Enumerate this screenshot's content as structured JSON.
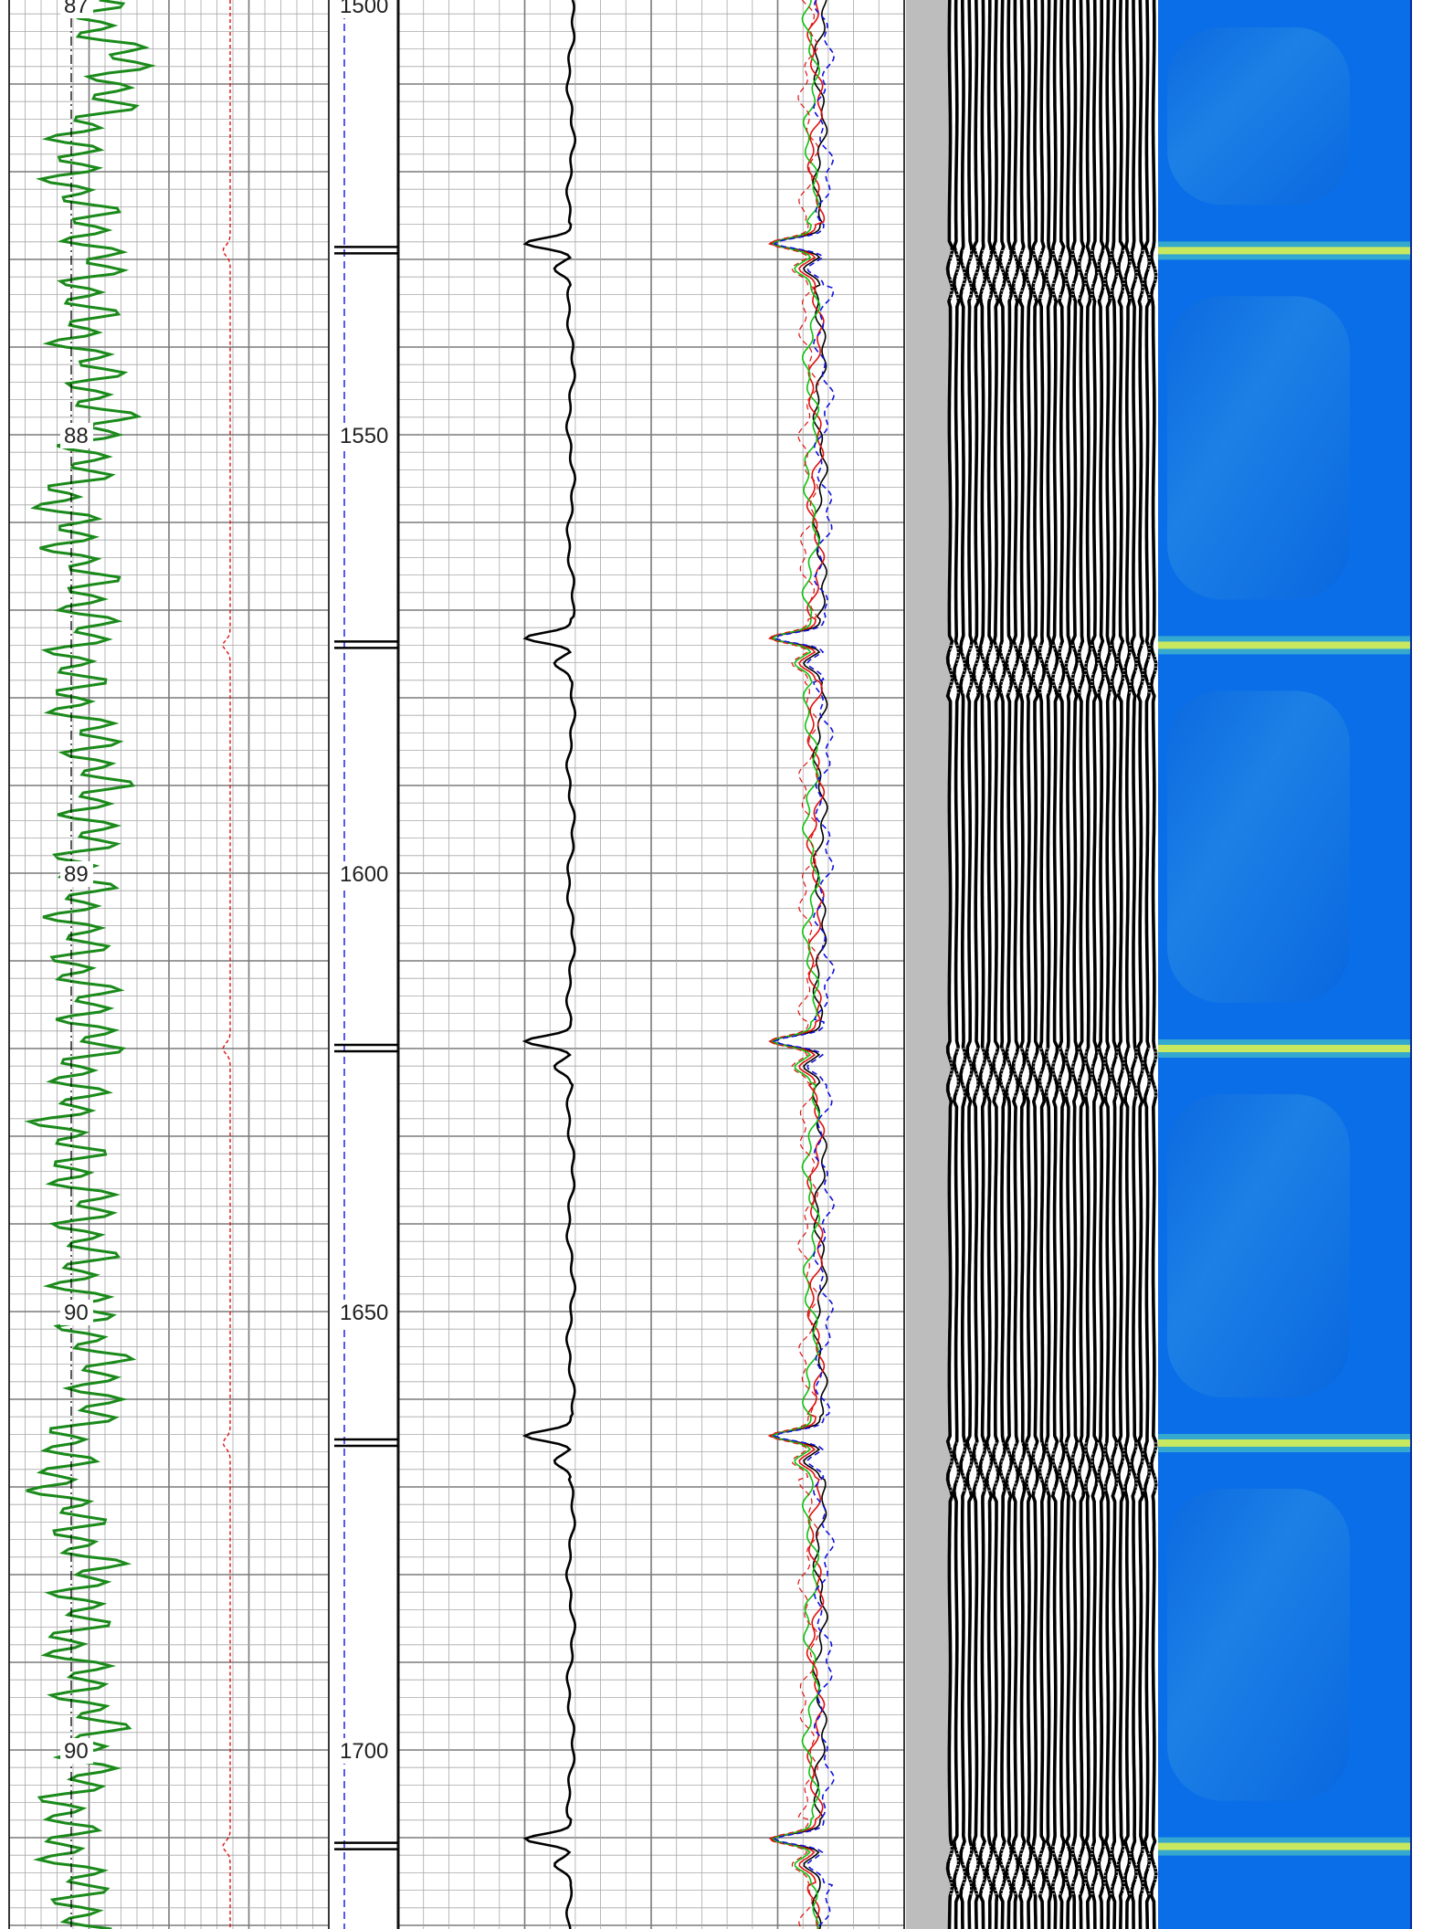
{
  "colors": {
    "grid_major": "#7a7a7a",
    "grid_minor": "#a8a8a8",
    "track_border": "#111111",
    "green_curve": "#1a8a1a",
    "red_curve": "#e01010",
    "blue_curve": "#1010e0",
    "black_curve": "#000000",
    "gray_strip": "#bdbdbd",
    "vdl_ink": "#000000",
    "spectrum_bg": "#0a6ee8",
    "spectrum_band": "#c8e860"
  },
  "chart_data": {
    "type": "line",
    "title": "",
    "depth_axis": {
      "ticks": [
        1550,
        1600,
        1650,
        1700
      ],
      "top_partial_label": "1500",
      "range": [
        1502,
        1720
      ],
      "label": ""
    },
    "left_track_scale": {
      "labels": [
        "88",
        "89",
        "90",
        "90"
      ],
      "top_partial_label": "87"
    },
    "collar_depths": [
      1529,
      1574,
      1620,
      1665,
      1711
    ],
    "series": [
      {
        "color": "#1a8a1a",
        "x": [
          1502,
          1510,
          1520,
          1530,
          1540,
          1550,
          1560,
          1570,
          1580,
          1590,
          1600,
          1610,
          1620,
          1630,
          1640,
          1650,
          1660,
          1670,
          1680,
          1690,
          1700,
          1710,
          1720
        ],
        "y": [
          62,
          90,
          48,
          70,
          58,
          75,
          45,
          66,
          52,
          72,
          60,
          55,
          68,
          47,
          63,
          58,
          74,
          40,
          66,
          52,
          70,
          45,
          62
        ]
      },
      {
        "color": "#e01010",
        "x": [
          1502,
          1529,
          1574,
          1620,
          1665,
          1711,
          1720
        ],
        "y": [
          0,
          0,
          0,
          0,
          0,
          0,
          0
        ]
      },
      {
        "color": "#000000",
        "x": [
          1502,
          1520,
          1529,
          1540,
          1570,
          1574,
          1590,
          1615,
          1620,
          1640,
          1660,
          1665,
          1690,
          1708,
          1711,
          1720
        ],
        "y": [
          450,
          460,
          360,
          460,
          455,
          355,
          460,
          455,
          360,
          450,
          455,
          360,
          470,
          460,
          355,
          465
        ]
      },
      {
        "color": "#1010e0",
        "x": [
          1502,
          1529,
          1574,
          1620,
          1665,
          1711,
          1720
        ],
        "y": [
          620,
          560,
          560,
          565,
          560,
          560,
          615
        ]
      }
    ]
  }
}
